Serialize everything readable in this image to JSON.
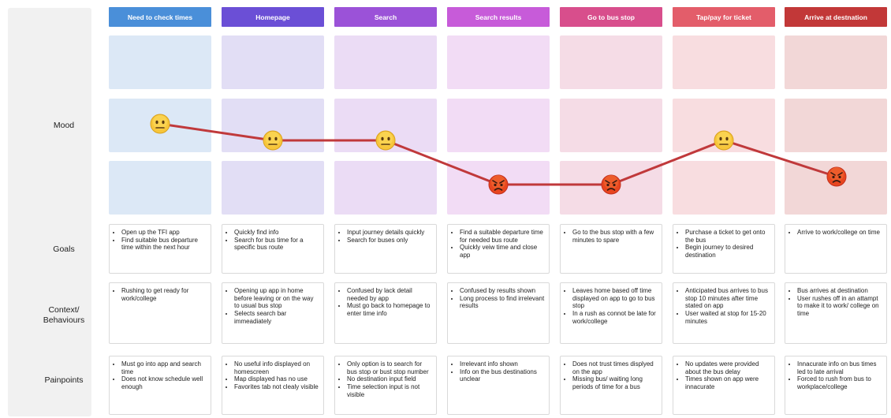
{
  "row_labels": {
    "mood": "Mood",
    "goals": "Goals",
    "context": "Context/\nBehaviours",
    "painpoints": "Painpoints"
  },
  "stages": [
    {
      "title": "Need to check times",
      "header_color": "#4a8fd9",
      "cell_color": "#dce8f6",
      "mood": "neutral",
      "goals": [
        "Open up the TFI app",
        "Find suitable bus departure time within the next hour"
      ],
      "context": [
        "Rushing to get ready for work/college"
      ],
      "painpoints": [
        "Must go into app and search time",
        "Does not know schedule well enough"
      ]
    },
    {
      "title": "Homepage",
      "header_color": "#6b4fd6",
      "cell_color": "#e2def5",
      "mood": "neutral",
      "goals": [
        "Quickly find info",
        "Search for bus time for a specific bus route"
      ],
      "context": [
        "Opening up app in home before leaving or on the way to usual bus stop",
        "Selects search bar immeadiately"
      ],
      "painpoints": [
        "No useful info displayed on homescreen",
        "Map displayed has no use",
        "Favorites tab not clealy visible"
      ]
    },
    {
      "title": "Search",
      "header_color": "#9b52d8",
      "cell_color": "#ebdcf5",
      "mood": "neutral",
      "goals": [
        "Input journey details quickly",
        "Search for buses only"
      ],
      "context": [
        "Confused by lack detail needed by app",
        "Must go back to homepage to enter time info"
      ],
      "painpoints": [
        "Only option is to search for bus stop or bust stop number",
        "No destination input field",
        "Time selection input is not visible"
      ]
    },
    {
      "title": "Search results",
      "header_color": "#c75bd9",
      "cell_color": "#f2dcf5",
      "mood": "angry",
      "goals": [
        "Find a suitable departure time for needed bus route",
        "Quickly veiw time and close app"
      ],
      "context": [
        "Confused by results shown",
        "Long process to find irrelevant results"
      ],
      "painpoints": [
        "Irrelevant info shown",
        "Info on the bus destinations unclear"
      ]
    },
    {
      "title": "Go to bus stop",
      "header_color": "#d84e8c",
      "cell_color": "#f5dce6",
      "mood": "angry",
      "goals": [
        "Go to the bus stop with a few minutes to spare"
      ],
      "context": [
        "Leaves home based off time displayed on app to go to bus stop",
        "In a rush as connot be late for work/college"
      ],
      "painpoints": [
        "Does not trust times displyed on the app",
        "Missing bus/ waiting long periods of time for a bus"
      ]
    },
    {
      "title": "Tap/pay for ticket",
      "header_color": "#e35d6a",
      "cell_color": "#f8dde0",
      "mood": "neutral",
      "goals": [
        "Purchase a ticket to get onto the bus",
        "Begin journey to desired destination"
      ],
      "context": [
        "Anticipated bus arrives to bus stop 10 minutes after time stated on app",
        "User waited at stop for 15-20 minutes"
      ],
      "painpoints": [
        "No updates were provided about the bus delay",
        "Times shown on app were innacurate"
      ]
    },
    {
      "title": "Arrive at destnation",
      "header_color": "#c23838",
      "cell_color": "#f2d7d7",
      "mood": "angry",
      "goals": [
        "Arrive to work/college on time"
      ],
      "context": [
        "Bus arrives at destination",
        "User rushes off in an attampt to make it to work/ college on time"
      ],
      "painpoints": [
        "Innacurate info on bus times led to late arrival",
        "Forced to rush from bus to workplace/college"
      ]
    }
  ],
  "mood_line_color": "#c0393b"
}
